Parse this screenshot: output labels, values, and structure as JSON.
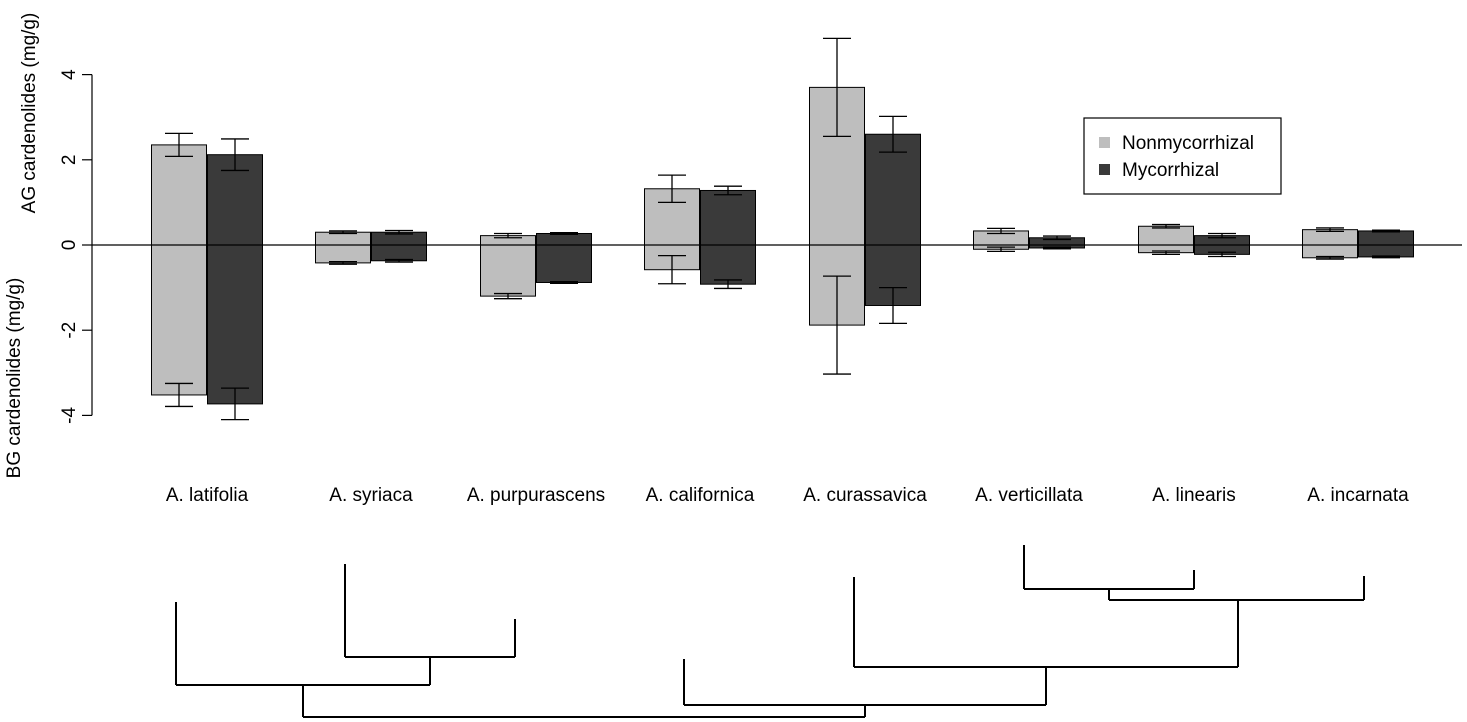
{
  "chart_data": {
    "type": "bar",
    "categories": [
      "A. latifolia",
      "A. syriaca",
      "A. purpurascens",
      "A. californica",
      "A. curassavica",
      "A. verticillata",
      "A. linearis",
      "A. incarnata"
    ],
    "ylabel_top": "AG cardenolides (mg/g)",
    "ylabel_bottom": "BG cardenolides (mg/g)",
    "yticks": [
      -4,
      -2,
      0,
      2,
      4
    ],
    "ylim": [
      -4.4,
      5.1
    ],
    "grid": false,
    "legend_position": "top-right",
    "series": [
      {
        "name": "Nonmycorrhizal",
        "color": "#bebebe",
        "ag_values": [
          2.35,
          0.3,
          0.22,
          1.32,
          3.7,
          0.33,
          0.44,
          0.36
        ],
        "ag_err": [
          0.27,
          0.03,
          0.05,
          0.32,
          1.15,
          0.06,
          0.04,
          0.04
        ],
        "bg_values": [
          -3.52,
          -0.42,
          -1.2,
          -0.58,
          -1.88,
          -0.1,
          -0.18,
          -0.3
        ],
        "bg_err": [
          0.27,
          0.03,
          0.06,
          0.33,
          1.15,
          0.05,
          0.04,
          0.03
        ]
      },
      {
        "name": "Mycorrhizal",
        "color": "#3a3a3a",
        "ag_values": [
          2.12,
          0.3,
          0.27,
          1.28,
          2.6,
          0.17,
          0.22,
          0.33
        ],
        "ag_err": [
          0.37,
          0.04,
          0.02,
          0.1,
          0.42,
          0.04,
          0.05,
          0.02
        ],
        "bg_values": [
          -3.73,
          -0.37,
          -0.88,
          -0.92,
          -1.42,
          -0.07,
          -0.22,
          -0.28
        ],
        "bg_err": [
          0.37,
          0.03,
          0.02,
          0.1,
          0.42,
          0.02,
          0.05,
          0.02
        ]
      }
    ],
    "phylogeny_order": [
      "A. latifolia",
      "A. syriaca",
      "A. purpurascens",
      "A. californica",
      "A. curassavica",
      "A. verticillata",
      "A. linearis",
      "A. incarnata"
    ]
  }
}
